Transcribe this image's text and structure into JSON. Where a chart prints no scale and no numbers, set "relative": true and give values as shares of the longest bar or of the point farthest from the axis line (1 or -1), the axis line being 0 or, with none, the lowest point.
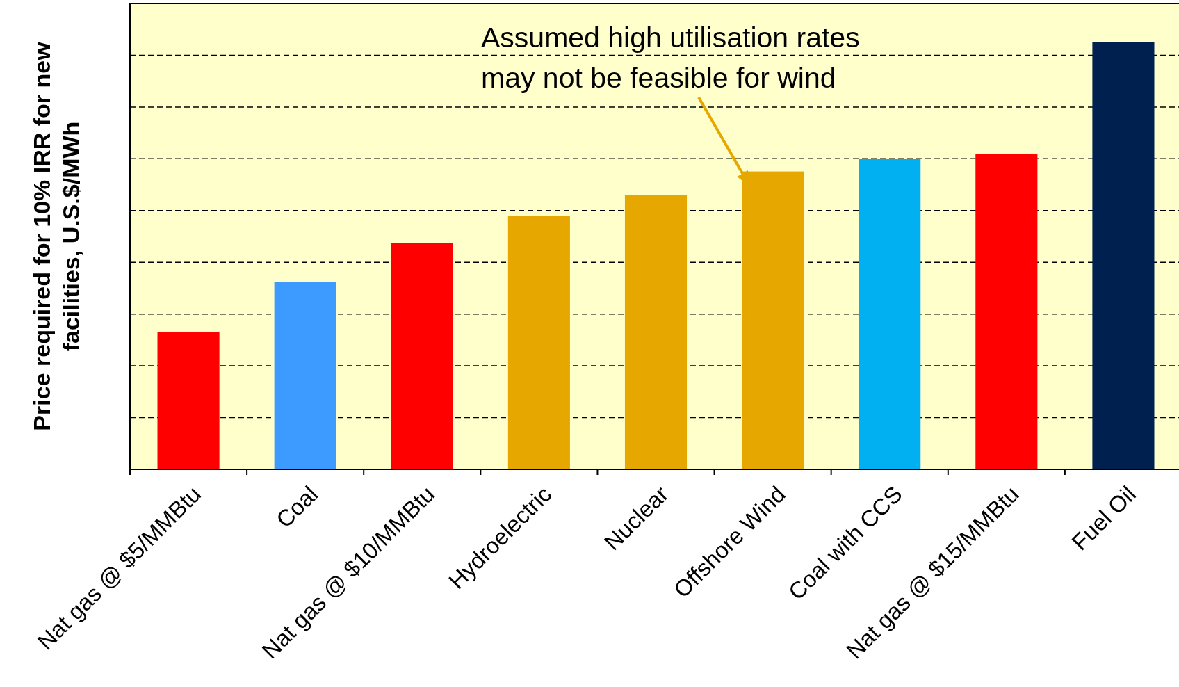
{
  "chart_data": {
    "type": "bar",
    "ylabel": "Price required for 10% IRR for new\nfacilities, U.S.$/MWh",
    "categories": [
      "Nat gas @ $5/MMBtu",
      "Coal",
      "Nat gas @ $10/MMBtu",
      "Hydroelectric",
      "Nuclear",
      "Offshore Wind",
      "Coal with CCS",
      "Nat gas @ $15/MMBtu",
      "Fuel Oil"
    ],
    "values": [
      0.322,
      0.438,
      0.53,
      0.593,
      0.641,
      0.697,
      0.727,
      0.738,
      1
    ],
    "colors": [
      "#ff0000",
      "#3d9bff",
      "#ff0000",
      "#e6a800",
      "#e6a800",
      "#e6a800",
      "#00b0f0",
      "#ff0000",
      "#002050"
    ],
    "relative": true,
    "grid": "y",
    "line_style": "dashed",
    "annotations": [
      {
        "text": "Assumed high utilisation rates\nmay not be feasible for wind",
        "x": "Offshore Wind",
        "y": 0.697
      }
    ]
  }
}
